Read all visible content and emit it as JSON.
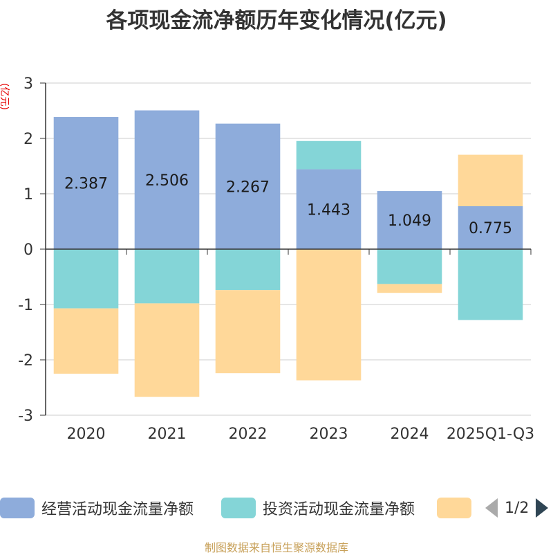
{
  "title": "各项现金流净额历年变化情况(亿元)",
  "source": "制图数据来自恒生聚源数据库",
  "pager": {
    "text": "1/2"
  },
  "chart_data": {
    "type": "bar",
    "stacked": true,
    "title": "各项现金流净额历年变化情况(亿元)",
    "ylabel": "(亿元)",
    "xlabel": "",
    "ylim": [
      -3,
      3
    ],
    "yticks": [
      3,
      2,
      1,
      0,
      -1,
      -2,
      -3
    ],
    "categories": [
      "2020",
      "2021",
      "2022",
      "2023",
      "2024",
      "2025Q1-Q3"
    ],
    "series": [
      {
        "name": "经营活动现金流量净额",
        "color": "#8eacdb",
        "values": [
          2.387,
          2.506,
          2.267,
          1.443,
          1.049,
          0.775
        ],
        "labels": [
          "2.387",
          "2.506",
          "2.267",
          "1.443",
          "1.049",
          "0.775"
        ]
      },
      {
        "name": "投资活动现金流量净额",
        "color": "#84d5d7",
        "values": [
          -1.07,
          -0.98,
          -0.74,
          0.51,
          -0.63,
          -1.28
        ]
      },
      {
        "name": "",
        "color": "#ffd899",
        "values": [
          -1.18,
          -1.69,
          -1.5,
          -2.37,
          -0.16,
          0.93
        ]
      }
    ],
    "legend_position": "bottom"
  }
}
